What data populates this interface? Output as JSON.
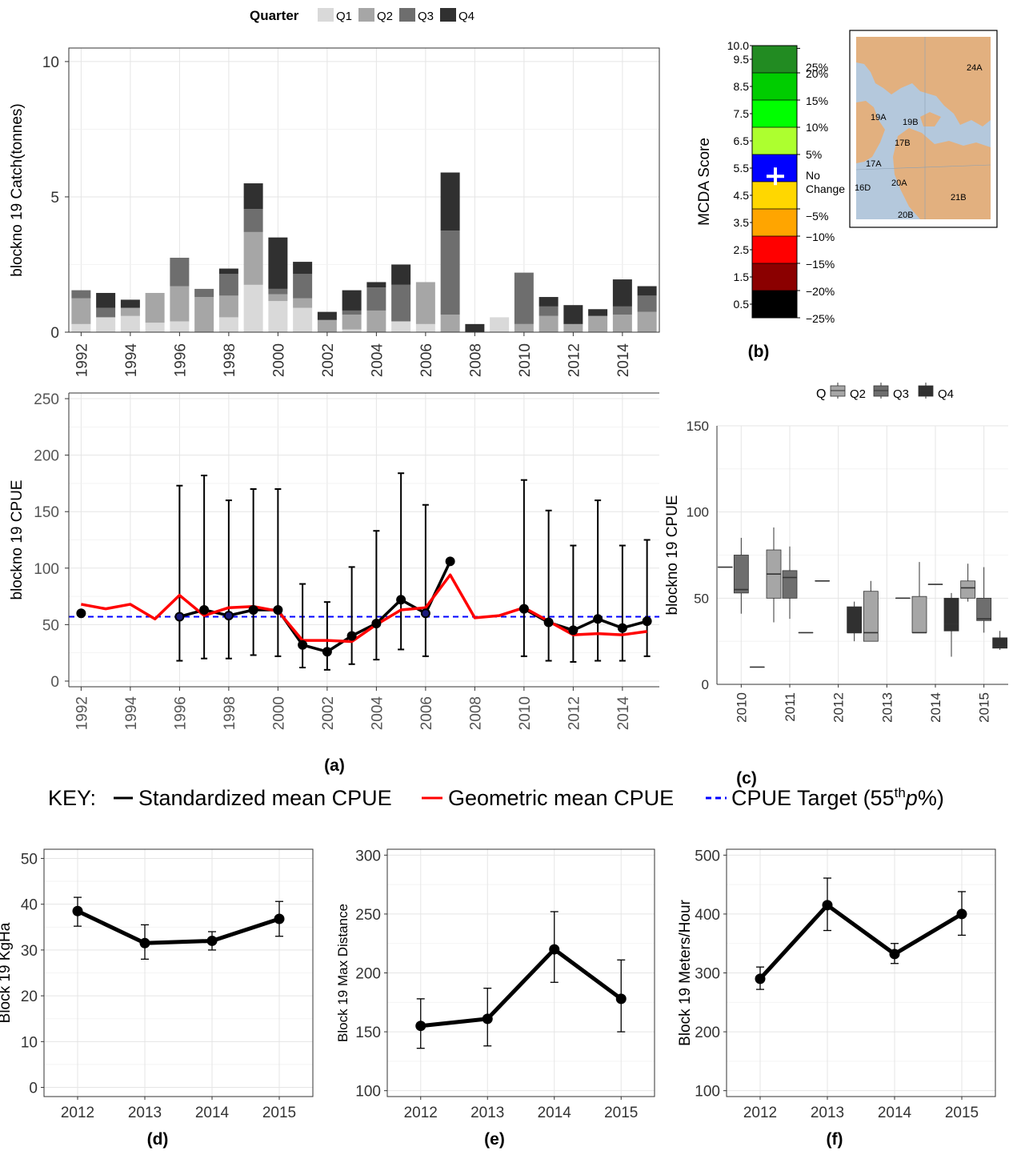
{
  "colors": {
    "q1": "#d9d9d9",
    "q2": "#a6a6a6",
    "q3": "#6e6e6e",
    "q4": "#303030",
    "std_line": "#000000",
    "geo_line": "#ff0000",
    "target_line": "#0000ff",
    "grid": "#e5e5e5",
    "land": "#e2b07f",
    "water": "#b4c8dc"
  },
  "legend_top": {
    "title": "Quarter",
    "items": [
      "Q1",
      "Q2",
      "Q3",
      "Q4"
    ]
  },
  "legend_c": {
    "title": "Q",
    "items": [
      "Q2",
      "Q3",
      "Q4"
    ]
  },
  "key": {
    "prefix": "KEY:",
    "std": "Standardized mean CPUE",
    "geo": "Geometric mean CPUE",
    "target_pre": "CPUE Target (55",
    "target_sup": "th",
    "target_p": "p",
    "target_post": "%)"
  },
  "panel_labels": {
    "a": "(a)",
    "b": "(b)",
    "c": "(c)",
    "d": "(d)",
    "e": "(e)",
    "f": "(f)"
  },
  "mcda": {
    "ylabel": "MCDA Score",
    "ticks": [
      "0.5",
      "1.5",
      "2.5",
      "3.5",
      "4.5",
      "5.5",
      "6.5",
      "7.5",
      "8.5",
      "9.5",
      "10.0"
    ],
    "bands": [
      "#000000",
      "#8b0000",
      "#ff0000",
      "#ffa500",
      "#ffd700",
      "#0000ff",
      "#adff2f",
      "#00ff00",
      "#00cd00",
      "#228b22",
      "#006400"
    ],
    "right_labels": [
      "−25%",
      "−20%",
      "−15%",
      "−10%",
      "−5%",
      "No",
      "Change",
      "5%",
      "10%",
      "15%",
      "20%",
      "25%"
    ],
    "score": 5.2
  },
  "map": {
    "labels": [
      "24A",
      "19A",
      "19B",
      "17B",
      "17A",
      "16D",
      "20A",
      "21B",
      "20B"
    ]
  },
  "chart_data": [
    {
      "id": "catch",
      "type": "bar",
      "ylabel": "blockno 19 Catch(tonnes)",
      "ylim": [
        0,
        10.5
      ],
      "yticks": [
        0,
        5,
        10
      ],
      "x": [
        1992,
        1993,
        1994,
        1995,
        1996,
        1997,
        1998,
        1999,
        2000,
        2001,
        2002,
        2003,
        2004,
        2005,
        2006,
        2007,
        2008,
        2009,
        2010,
        2011,
        2012,
        2013,
        2014,
        2015
      ],
      "xticks": [
        "1992",
        "1994",
        "1996",
        "1998",
        "2000",
        "2002",
        "2004",
        "2006",
        "2008",
        "2010",
        "2012",
        "2014"
      ],
      "series": [
        {
          "name": "Q1",
          "values": [
            0.3,
            0.55,
            0.6,
            0.35,
            0.4,
            0,
            0.55,
            1.75,
            1.15,
            0.9,
            0,
            0.1,
            0,
            0.4,
            0.3,
            0,
            0,
            0.55,
            0,
            0,
            0,
            0,
            0,
            0
          ]
        },
        {
          "name": "Q2",
          "values": [
            0.95,
            0,
            0.3,
            1.1,
            1.3,
            1.3,
            0.8,
            1.95,
            0.25,
            0.35,
            0.45,
            0.55,
            0.8,
            0,
            1.55,
            0.65,
            0,
            0,
            0.3,
            0.6,
            0.3,
            0.6,
            0.65,
            0.75
          ]
        },
        {
          "name": "Q3",
          "values": [
            0.3,
            0.35,
            0,
            0,
            1.05,
            0.3,
            0.8,
            0.85,
            0.2,
            0.9,
            0,
            0.15,
            0.85,
            1.35,
            0,
            3.1,
            0,
            0,
            1.9,
            0.35,
            0,
            0,
            0.3,
            0.6
          ]
        },
        {
          "name": "Q4",
          "values": [
            0,
            0.55,
            0.3,
            0,
            0,
            0,
            0.2,
            0.95,
            1.9,
            0.45,
            0.3,
            0.75,
            0.2,
            0.75,
            0,
            2.15,
            0.3,
            0,
            0,
            0.35,
            0.7,
            0.25,
            1.0,
            0.35
          ]
        }
      ]
    },
    {
      "id": "cpue",
      "type": "line",
      "ylabel": "blockno 19 CPUE",
      "ylim": [
        -5,
        255
      ],
      "yticks": [
        0,
        50,
        100,
        150,
        200,
        250
      ],
      "xticks": [
        "1992",
        "1994",
        "1996",
        "1998",
        "2000",
        "2002",
        "2004",
        "2006",
        "2008",
        "2010",
        "2012",
        "2014"
      ],
      "target": 57,
      "geometric": {
        "x": [
          1992,
          1993,
          1994,
          1995,
          1996,
          1997,
          1998,
          1999,
          2000,
          2001,
          2002,
          2003,
          2004,
          2005,
          2006,
          2007,
          2008,
          2009,
          2010,
          2011,
          2012,
          2013,
          2014,
          2015
        ],
        "y": [
          68,
          64,
          68,
          55,
          76,
          58,
          65,
          66,
          62,
          36,
          36,
          35,
          50,
          63,
          65,
          94,
          56,
          58,
          65,
          53,
          41,
          42,
          41,
          44
        ]
      },
      "standardized": {
        "x": [
          1992,
          1996,
          1997,
          1998,
          1999,
          2000,
          2001,
          2002,
          2003,
          2004,
          2005,
          2006,
          2007,
          2010,
          2011,
          2012,
          2013,
          2014,
          2015
        ],
        "y": [
          60,
          57,
          63,
          58,
          63,
          63,
          32,
          26,
          40,
          51,
          72,
          60,
          106,
          64,
          52,
          45,
          55,
          47,
          53
        ]
      },
      "errorbars": [
        {
          "x": 1996,
          "lo": 18,
          "hi": 173
        },
        {
          "x": 1997,
          "lo": 20,
          "hi": 182
        },
        {
          "x": 1998,
          "lo": 20,
          "hi": 160
        },
        {
          "x": 1999,
          "lo": 23,
          "hi": 170
        },
        {
          "x": 2000,
          "lo": 22,
          "hi": 170
        },
        {
          "x": 2001,
          "lo": 12,
          "hi": 86
        },
        {
          "x": 2002,
          "lo": 10,
          "hi": 70
        },
        {
          "x": 2003,
          "lo": 15,
          "hi": 101
        },
        {
          "x": 2004,
          "lo": 19,
          "hi": 133
        },
        {
          "x": 2005,
          "lo": 28,
          "hi": 184
        },
        {
          "x": 2006,
          "lo": 22,
          "hi": 156
        },
        {
          "x": 2010,
          "lo": 22,
          "hi": 178
        },
        {
          "x": 2011,
          "lo": 18,
          "hi": 151
        },
        {
          "x": 2012,
          "lo": 17,
          "hi": 120
        },
        {
          "x": 2013,
          "lo": 18,
          "hi": 160
        },
        {
          "x": 2014,
          "lo": 18,
          "hi": 120
        },
        {
          "x": 2015,
          "lo": 22,
          "hi": 125
        }
      ]
    },
    {
      "id": "box",
      "type": "box",
      "ylabel": "blockno 19 CPUE",
      "ylim": [
        0,
        150
      ],
      "yticks": [
        0,
        50,
        100,
        150
      ],
      "categories": [
        "2010",
        "2011",
        "2012",
        "2013",
        "2014",
        "2015"
      ],
      "boxes": [
        {
          "cat": 0,
          "q": "Q2",
          "min": 68,
          "q1": 68,
          "med": 68,
          "q3": 68,
          "max": 68
        },
        {
          "cat": 0,
          "q": "Q3",
          "min": 41,
          "q1": 53,
          "med": 55,
          "q3": 75,
          "max": 85
        },
        {
          "cat": 0,
          "q": "Q4",
          "min": 10,
          "q1": 10,
          "med": 10,
          "q3": 10,
          "max": 10
        },
        {
          "cat": 1,
          "q": "Q2",
          "min": 36,
          "q1": 50,
          "med": 64,
          "q3": 78,
          "max": 91
        },
        {
          "cat": 1,
          "q": "Q3",
          "min": 38,
          "q1": 50,
          "med": 62,
          "q3": 66,
          "max": 80
        },
        {
          "cat": 1,
          "q": "Q4",
          "min": 30,
          "q1": 30,
          "med": 30,
          "q3": 30,
          "max": 30
        },
        {
          "cat": 2,
          "q": "Q2",
          "min": 60,
          "q1": 60,
          "med": 60,
          "q3": 60,
          "max": 60
        },
        {
          "cat": 2,
          "q": "Q4",
          "min": 25,
          "q1": 30,
          "med": 30,
          "q3": 45,
          "max": 48
        },
        {
          "cat": 3,
          "q": "Q2",
          "min": 25,
          "q1": 25,
          "med": 30,
          "q3": 54,
          "max": 60
        },
        {
          "cat": 3,
          "q": "Q4",
          "min": 50,
          "q1": 50,
          "med": 50,
          "q3": 50,
          "max": 50
        },
        {
          "cat": 4,
          "q": "Q2",
          "min": 30,
          "q1": 30,
          "med": 30,
          "q3": 51,
          "max": 71
        },
        {
          "cat": 4,
          "q": "Q3",
          "min": 58,
          "q1": 58,
          "med": 58,
          "q3": 58,
          "max": 58
        },
        {
          "cat": 4,
          "q": "Q4",
          "min": 16,
          "q1": 31,
          "med": 35,
          "q3": 50,
          "max": 53
        },
        {
          "cat": 5,
          "q": "Q2",
          "min": 48,
          "q1": 50,
          "med": 56,
          "q3": 60,
          "max": 70
        },
        {
          "cat": 5,
          "q": "Q3",
          "min": 30,
          "q1": 37,
          "med": 38,
          "q3": 50,
          "max": 68
        },
        {
          "cat": 5,
          "q": "Q4",
          "min": 20,
          "q1": 21,
          "med": 22,
          "q3": 27,
          "max": 31
        }
      ]
    },
    {
      "id": "kgha",
      "type": "line",
      "ylabel": "Block 19 KgHa",
      "ylim": [
        -2,
        52
      ],
      "yticks": [
        0,
        10,
        20,
        30,
        40,
        50
      ],
      "x": [
        "2012",
        "2013",
        "2014",
        "2015"
      ],
      "y": [
        38.5,
        31.5,
        32,
        36.8
      ],
      "err_lo": [
        35.2,
        28,
        30,
        33
      ],
      "err_hi": [
        41.5,
        35.5,
        34,
        40.6
      ]
    },
    {
      "id": "maxdist",
      "type": "line",
      "ylabel": "Block 19 Max Distance",
      "ylim": [
        95,
        305
      ],
      "yticks": [
        100,
        150,
        200,
        250,
        300
      ],
      "x": [
        "2012",
        "2013",
        "2014",
        "2015"
      ],
      "y": [
        155,
        161,
        220,
        178
      ],
      "err_lo": [
        136,
        138,
        192,
        150
      ],
      "err_hi": [
        178,
        187,
        252,
        211
      ]
    },
    {
      "id": "meters",
      "type": "line",
      "ylabel": "Block 19 Meters/Hour",
      "ylim": [
        90,
        510
      ],
      "yticks": [
        100,
        200,
        300,
        400,
        500
      ],
      "x": [
        "2012",
        "2013",
        "2014",
        "2015"
      ],
      "y": [
        290,
        415,
        332,
        400
      ],
      "err_lo": [
        272,
        372,
        316,
        364
      ],
      "err_hi": [
        310,
        461,
        350,
        438
      ]
    }
  ]
}
